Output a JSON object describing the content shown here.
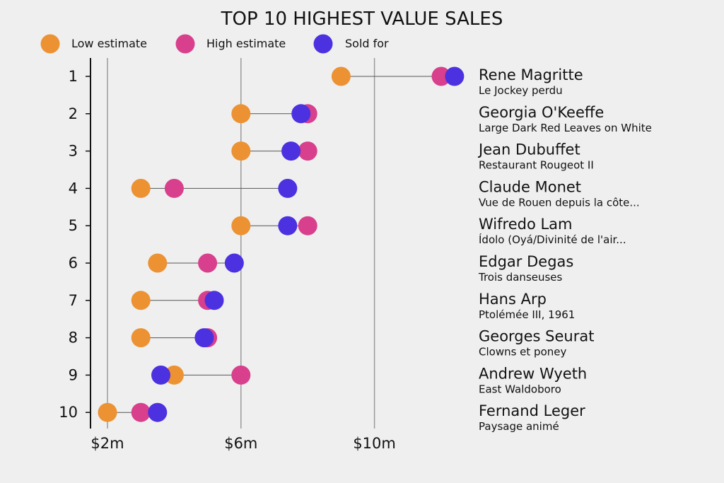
{
  "chart_data": {
    "type": "dumbbell",
    "title": "TOP 10 HIGHEST VALUE SALES",
    "xlabel": "",
    "ylabel": "",
    "x_unit": "million USD",
    "xlim": [
      1.5,
      12.5
    ],
    "xticks": [
      {
        "value": 2,
        "label": "$2m"
      },
      {
        "value": 6,
        "label": "$6m"
      },
      {
        "value": 10,
        "label": "$10m"
      }
    ],
    "grid": "vertical lines at ticks",
    "legend_position": "top-left",
    "series": [
      {
        "name": "Low estimate",
        "key": "low",
        "color": "#ec9233"
      },
      {
        "name": "High estimate",
        "key": "high",
        "color": "#d83f8c"
      },
      {
        "name": "Sold for",
        "key": "sold",
        "color": "#4b31e0"
      }
    ],
    "rows": [
      {
        "rank": "1",
        "artist": "Rene Magritte",
        "work": "Le Jockey perdu",
        "low": 9.0,
        "high": 12.0,
        "sold": 12.4
      },
      {
        "rank": "2",
        "artist": "Georgia O'Keeffe",
        "work": "Large Dark Red Leaves on White",
        "low": 6.0,
        "high": 8.0,
        "sold": 7.8
      },
      {
        "rank": "3",
        "artist": "Jean Dubuffet",
        "work": "Restaurant Rougeot II",
        "low": 6.0,
        "high": 8.0,
        "sold": 7.5
      },
      {
        "rank": "4",
        "artist": "Claude Monet",
        "work": "Vue de Rouen depuis la côte...",
        "low": 3.0,
        "high": 4.0,
        "sold": 7.4
      },
      {
        "rank": "5",
        "artist": "Wifredo Lam",
        "work": "Ídolo (Oyá/Divinité de l'air...",
        "low": 6.0,
        "high": 8.0,
        "sold": 7.4
      },
      {
        "rank": "6",
        "artist": "Edgar Degas",
        "work": "Trois danseuses",
        "low": 3.5,
        "high": 5.0,
        "sold": 5.8
      },
      {
        "rank": "7",
        "artist": "Hans Arp",
        "work": "Ptolémée III, 1961",
        "low": 3.0,
        "high": 5.0,
        "sold": 5.2
      },
      {
        "rank": "8",
        "artist": "Georges Seurat",
        "work": "Clowns et poney",
        "low": 3.0,
        "high": 5.0,
        "sold": 4.9
      },
      {
        "rank": "9",
        "artist": "Andrew Wyeth",
        "work": "East Waldoboro",
        "low": 4.0,
        "high": 6.0,
        "sold": 3.6
      },
      {
        "rank": "10",
        "artist": "Fernand Leger",
        "work": "Paysage animé",
        "low": 2.0,
        "high": 3.0,
        "sold": 3.5
      }
    ]
  }
}
